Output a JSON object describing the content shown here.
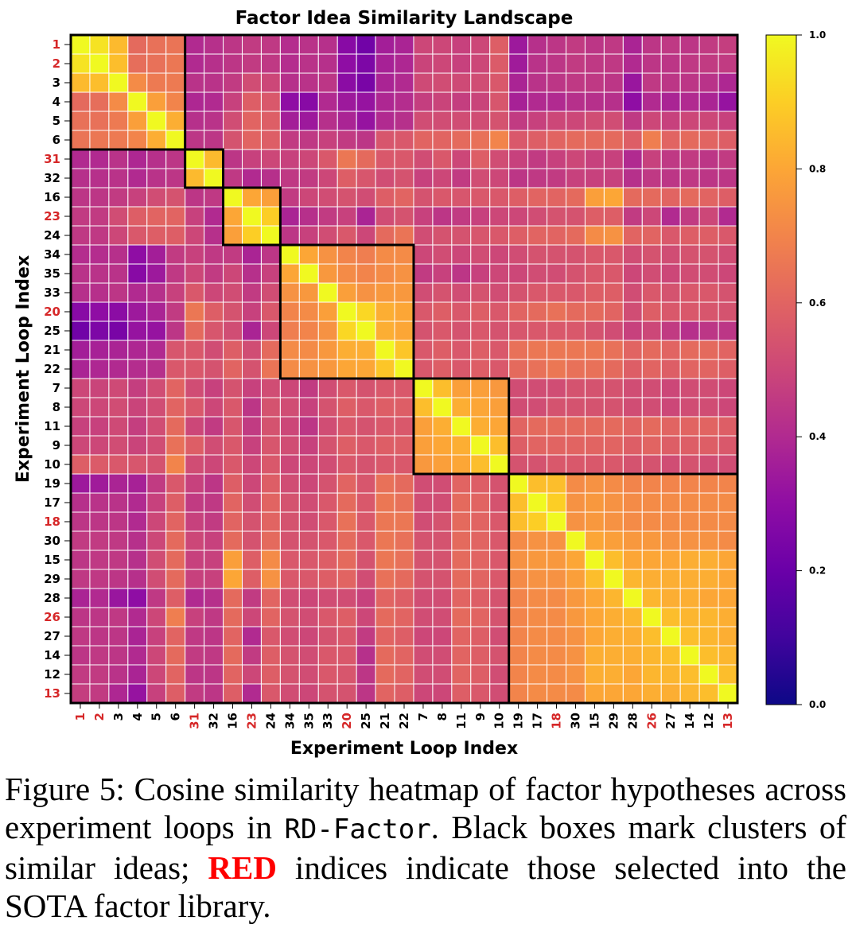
{
  "chart_data": {
    "type": "heatmap",
    "title": "Factor Idea Similarity Landscape",
    "xlabel": "Experiment Loop Index",
    "ylabel": "Experiment Loop Index",
    "labels": [
      "1",
      "2",
      "3",
      "4",
      "5",
      "6",
      "31",
      "32",
      "16",
      "23",
      "24",
      "34",
      "35",
      "33",
      "20",
      "25",
      "21",
      "22",
      "7",
      "8",
      "11",
      "9",
      "10",
      "19",
      "17",
      "18",
      "30",
      "15",
      "29",
      "28",
      "26",
      "27",
      "14",
      "12",
      "13"
    ],
    "selected_labels": [
      "1",
      "2",
      "31",
      "23",
      "20",
      "18",
      "26",
      "13"
    ],
    "selected_color": "#d62728",
    "clusters": [
      {
        "start": "1",
        "end": "6"
      },
      {
        "start": "31",
        "end": "32"
      },
      {
        "start": "16",
        "end": "24"
      },
      {
        "start": "34",
        "end": "22"
      },
      {
        "start": "7",
        "end": "10"
      },
      {
        "start": "19",
        "end": "13"
      }
    ],
    "colormap": "plasma",
    "vmin": 0.0,
    "vmax": 1.0,
    "colorbar_ticks": [
      "0.0",
      "0.2",
      "0.4",
      "0.6",
      "0.8",
      "1.0"
    ],
    "grid": true,
    "values": [
      [
        1.0,
        0.95,
        0.85,
        0.62,
        0.64,
        0.65,
        0.4,
        0.42,
        0.44,
        0.46,
        0.45,
        0.41,
        0.43,
        0.42,
        0.28,
        0.22,
        0.36,
        0.38,
        0.5,
        0.5,
        0.48,
        0.5,
        0.58,
        0.34,
        0.42,
        0.44,
        0.46,
        0.44,
        0.45,
        0.38,
        0.44,
        0.45,
        0.44,
        0.46,
        0.47
      ],
      [
        0.95,
        1.0,
        0.86,
        0.63,
        0.64,
        0.66,
        0.4,
        0.42,
        0.44,
        0.46,
        0.45,
        0.41,
        0.43,
        0.42,
        0.3,
        0.25,
        0.37,
        0.39,
        0.49,
        0.5,
        0.48,
        0.5,
        0.57,
        0.35,
        0.43,
        0.44,
        0.46,
        0.45,
        0.45,
        0.4,
        0.44,
        0.44,
        0.45,
        0.46,
        0.46
      ],
      [
        0.85,
        0.86,
        1.0,
        0.72,
        0.67,
        0.67,
        0.43,
        0.43,
        0.46,
        0.52,
        0.5,
        0.42,
        0.43,
        0.44,
        0.29,
        0.24,
        0.38,
        0.4,
        0.51,
        0.52,
        0.51,
        0.52,
        0.56,
        0.38,
        0.43,
        0.44,
        0.45,
        0.45,
        0.44,
        0.33,
        0.45,
        0.44,
        0.44,
        0.43,
        0.39
      ],
      [
        0.62,
        0.63,
        0.72,
        1.0,
        0.78,
        0.7,
        0.39,
        0.4,
        0.48,
        0.58,
        0.56,
        0.3,
        0.28,
        0.4,
        0.34,
        0.32,
        0.39,
        0.41,
        0.47,
        0.49,
        0.47,
        0.49,
        0.55,
        0.37,
        0.4,
        0.4,
        0.42,
        0.42,
        0.42,
        0.3,
        0.4,
        0.38,
        0.4,
        0.38,
        0.32
      ],
      [
        0.64,
        0.64,
        0.67,
        0.78,
        1.0,
        0.82,
        0.42,
        0.43,
        0.52,
        0.6,
        0.58,
        0.36,
        0.34,
        0.42,
        0.38,
        0.32,
        0.4,
        0.42,
        0.52,
        0.52,
        0.52,
        0.52,
        0.54,
        0.46,
        0.48,
        0.5,
        0.5,
        0.52,
        0.52,
        0.45,
        0.5,
        0.48,
        0.5,
        0.5,
        0.48
      ],
      [
        0.65,
        0.66,
        0.67,
        0.7,
        0.82,
        1.0,
        0.44,
        0.44,
        0.54,
        0.6,
        0.58,
        0.46,
        0.45,
        0.48,
        0.46,
        0.44,
        0.55,
        0.56,
        0.6,
        0.6,
        0.62,
        0.64,
        0.7,
        0.56,
        0.58,
        0.6,
        0.62,
        0.62,
        0.62,
        0.58,
        0.68,
        0.6,
        0.62,
        0.6,
        0.58
      ],
      [
        0.4,
        0.4,
        0.43,
        0.39,
        0.42,
        0.44,
        1.0,
        0.85,
        0.44,
        0.48,
        0.5,
        0.48,
        0.5,
        0.56,
        0.66,
        0.62,
        0.56,
        0.56,
        0.52,
        0.56,
        0.5,
        0.58,
        0.52,
        0.48,
        0.46,
        0.48,
        0.5,
        0.48,
        0.48,
        0.4,
        0.48,
        0.45,
        0.46,
        0.44,
        0.46
      ],
      [
        0.42,
        0.42,
        0.43,
        0.4,
        0.43,
        0.44,
        0.85,
        1.0,
        0.45,
        0.4,
        0.42,
        0.45,
        0.46,
        0.5,
        0.58,
        0.55,
        0.52,
        0.54,
        0.48,
        0.5,
        0.46,
        0.52,
        0.5,
        0.44,
        0.45,
        0.46,
        0.48,
        0.48,
        0.48,
        0.42,
        0.45,
        0.44,
        0.45,
        0.44,
        0.44
      ],
      [
        0.44,
        0.44,
        0.46,
        0.48,
        0.52,
        0.54,
        0.44,
        0.45,
        1.0,
        0.8,
        0.78,
        0.46,
        0.5,
        0.52,
        0.54,
        0.52,
        0.58,
        0.6,
        0.54,
        0.56,
        0.55,
        0.56,
        0.56,
        0.58,
        0.6,
        0.6,
        0.62,
        0.78,
        0.8,
        0.62,
        0.62,
        0.6,
        0.62,
        0.6,
        0.58
      ],
      [
        0.46,
        0.46,
        0.52,
        0.58,
        0.6,
        0.6,
        0.48,
        0.4,
        0.8,
        1.0,
        0.9,
        0.38,
        0.42,
        0.46,
        0.48,
        0.38,
        0.52,
        0.54,
        0.48,
        0.44,
        0.46,
        0.48,
        0.5,
        0.5,
        0.52,
        0.54,
        0.54,
        0.58,
        0.58,
        0.46,
        0.5,
        0.4,
        0.46,
        0.5,
        0.4
      ],
      [
        0.45,
        0.45,
        0.5,
        0.56,
        0.58,
        0.58,
        0.5,
        0.42,
        0.78,
        0.9,
        1.0,
        0.44,
        0.48,
        0.52,
        0.56,
        0.5,
        0.62,
        0.65,
        0.52,
        0.54,
        0.54,
        0.55,
        0.56,
        0.58,
        0.6,
        0.6,
        0.62,
        0.72,
        0.74,
        0.6,
        0.6,
        0.56,
        0.58,
        0.58,
        0.56
      ],
      [
        0.41,
        0.41,
        0.42,
        0.3,
        0.36,
        0.46,
        0.48,
        0.45,
        0.46,
        0.38,
        0.44,
        1.0,
        0.8,
        0.74,
        0.7,
        0.68,
        0.72,
        0.72,
        0.5,
        0.52,
        0.5,
        0.52,
        0.5,
        0.52,
        0.54,
        0.54,
        0.54,
        0.56,
        0.56,
        0.52,
        0.54,
        0.52,
        0.54,
        0.54,
        0.52
      ],
      [
        0.43,
        0.43,
        0.43,
        0.28,
        0.34,
        0.45,
        0.5,
        0.46,
        0.5,
        0.42,
        0.48,
        0.8,
        1.0,
        0.76,
        0.72,
        0.7,
        0.72,
        0.74,
        0.46,
        0.48,
        0.44,
        0.48,
        0.5,
        0.5,
        0.52,
        0.52,
        0.54,
        0.56,
        0.56,
        0.5,
        0.52,
        0.5,
        0.52,
        0.52,
        0.5
      ],
      [
        0.42,
        0.42,
        0.44,
        0.4,
        0.42,
        0.48,
        0.56,
        0.5,
        0.52,
        0.46,
        0.52,
        0.74,
        0.76,
        1.0,
        0.78,
        0.74,
        0.76,
        0.76,
        0.52,
        0.54,
        0.52,
        0.54,
        0.52,
        0.54,
        0.56,
        0.56,
        0.56,
        0.58,
        0.58,
        0.52,
        0.56,
        0.54,
        0.56,
        0.56,
        0.54
      ],
      [
        0.28,
        0.3,
        0.29,
        0.34,
        0.38,
        0.46,
        0.66,
        0.58,
        0.54,
        0.48,
        0.56,
        0.7,
        0.72,
        0.78,
        1.0,
        0.92,
        0.82,
        0.8,
        0.56,
        0.58,
        0.56,
        0.58,
        0.56,
        0.6,
        0.62,
        0.64,
        0.62,
        0.62,
        0.6,
        0.52,
        0.58,
        0.56,
        0.56,
        0.55,
        0.54
      ],
      [
        0.22,
        0.25,
        0.24,
        0.32,
        0.32,
        0.44,
        0.62,
        0.55,
        0.52,
        0.38,
        0.5,
        0.68,
        0.7,
        0.74,
        0.92,
        1.0,
        0.82,
        0.8,
        0.54,
        0.56,
        0.54,
        0.56,
        0.54,
        0.55,
        0.56,
        0.56,
        0.56,
        0.54,
        0.52,
        0.48,
        0.5,
        0.46,
        0.42,
        0.44,
        0.44
      ],
      [
        0.36,
        0.37,
        0.38,
        0.39,
        0.4,
        0.55,
        0.56,
        0.52,
        0.58,
        0.52,
        0.62,
        0.72,
        0.72,
        0.76,
        0.82,
        0.82,
        1.0,
        0.88,
        0.56,
        0.58,
        0.56,
        0.58,
        0.56,
        0.64,
        0.66,
        0.66,
        0.66,
        0.66,
        0.64,
        0.6,
        0.62,
        0.6,
        0.62,
        0.62,
        0.6
      ],
      [
        0.38,
        0.39,
        0.4,
        0.41,
        0.42,
        0.56,
        0.56,
        0.54,
        0.6,
        0.54,
        0.65,
        0.72,
        0.74,
        0.76,
        0.8,
        0.8,
        0.88,
        1.0,
        0.56,
        0.58,
        0.56,
        0.58,
        0.56,
        0.62,
        0.64,
        0.66,
        0.64,
        0.64,
        0.62,
        0.58,
        0.6,
        0.58,
        0.6,
        0.6,
        0.58
      ],
      [
        0.5,
        0.49,
        0.51,
        0.47,
        0.52,
        0.6,
        0.52,
        0.48,
        0.54,
        0.48,
        0.52,
        0.5,
        0.46,
        0.52,
        0.56,
        0.54,
        0.56,
        0.56,
        1.0,
        0.86,
        0.78,
        0.78,
        0.76,
        0.52,
        0.52,
        0.52,
        0.54,
        0.54,
        0.54,
        0.52,
        0.52,
        0.5,
        0.52,
        0.52,
        0.5
      ],
      [
        0.5,
        0.5,
        0.52,
        0.49,
        0.52,
        0.6,
        0.56,
        0.5,
        0.56,
        0.44,
        0.54,
        0.52,
        0.48,
        0.54,
        0.58,
        0.56,
        0.58,
        0.58,
        0.86,
        1.0,
        0.82,
        0.8,
        0.78,
        0.52,
        0.52,
        0.54,
        0.54,
        0.54,
        0.54,
        0.52,
        0.52,
        0.5,
        0.52,
        0.52,
        0.5
      ],
      [
        0.48,
        0.48,
        0.51,
        0.47,
        0.52,
        0.62,
        0.5,
        0.46,
        0.55,
        0.46,
        0.54,
        0.5,
        0.44,
        0.52,
        0.56,
        0.54,
        0.56,
        0.56,
        0.78,
        0.82,
        1.0,
        0.82,
        0.8,
        0.6,
        0.62,
        0.62,
        0.62,
        0.62,
        0.62,
        0.6,
        0.62,
        0.6,
        0.6,
        0.6,
        0.58
      ],
      [
        0.5,
        0.5,
        0.52,
        0.49,
        0.52,
        0.64,
        0.58,
        0.52,
        0.56,
        0.48,
        0.55,
        0.52,
        0.48,
        0.54,
        0.58,
        0.56,
        0.58,
        0.58,
        0.78,
        0.8,
        0.82,
        1.0,
        0.86,
        0.58,
        0.6,
        0.6,
        0.6,
        0.6,
        0.6,
        0.58,
        0.6,
        0.58,
        0.58,
        0.58,
        0.56
      ],
      [
        0.58,
        0.57,
        0.56,
        0.55,
        0.54,
        0.7,
        0.52,
        0.5,
        0.56,
        0.5,
        0.56,
        0.5,
        0.5,
        0.52,
        0.56,
        0.54,
        0.56,
        0.56,
        0.76,
        0.78,
        0.8,
        0.86,
        1.0,
        0.54,
        0.54,
        0.56,
        0.56,
        0.56,
        0.56,
        0.54,
        0.54,
        0.52,
        0.54,
        0.52,
        0.52
      ],
      [
        0.34,
        0.35,
        0.38,
        0.37,
        0.46,
        0.56,
        0.48,
        0.44,
        0.58,
        0.5,
        0.58,
        0.52,
        0.5,
        0.54,
        0.6,
        0.55,
        0.64,
        0.62,
        0.52,
        0.52,
        0.6,
        0.58,
        0.54,
        1.0,
        0.86,
        0.86,
        0.72,
        0.74,
        0.72,
        0.7,
        0.7,
        0.7,
        0.7,
        0.7,
        0.7
      ],
      [
        0.42,
        0.43,
        0.43,
        0.4,
        0.48,
        0.58,
        0.46,
        0.45,
        0.6,
        0.52,
        0.6,
        0.54,
        0.52,
        0.56,
        0.62,
        0.56,
        0.66,
        0.64,
        0.52,
        0.52,
        0.62,
        0.6,
        0.54,
        0.86,
        1.0,
        0.9,
        0.74,
        0.76,
        0.74,
        0.72,
        0.72,
        0.72,
        0.72,
        0.72,
        0.72
      ],
      [
        0.44,
        0.44,
        0.44,
        0.4,
        0.5,
        0.6,
        0.48,
        0.46,
        0.6,
        0.54,
        0.6,
        0.54,
        0.52,
        0.56,
        0.64,
        0.56,
        0.66,
        0.66,
        0.52,
        0.54,
        0.62,
        0.6,
        0.56,
        0.86,
        0.9,
        1.0,
        0.74,
        0.76,
        0.74,
        0.72,
        0.72,
        0.72,
        0.72,
        0.72,
        0.72
      ],
      [
        0.46,
        0.46,
        0.45,
        0.42,
        0.5,
        0.62,
        0.5,
        0.48,
        0.62,
        0.54,
        0.62,
        0.54,
        0.54,
        0.56,
        0.62,
        0.56,
        0.66,
        0.64,
        0.54,
        0.54,
        0.62,
        0.6,
        0.56,
        0.72,
        0.74,
        0.74,
        1.0,
        0.8,
        0.78,
        0.76,
        0.76,
        0.74,
        0.74,
        0.74,
        0.72
      ],
      [
        0.44,
        0.45,
        0.45,
        0.42,
        0.52,
        0.62,
        0.48,
        0.48,
        0.78,
        0.58,
        0.72,
        0.56,
        0.56,
        0.58,
        0.62,
        0.54,
        0.66,
        0.64,
        0.54,
        0.54,
        0.62,
        0.6,
        0.56,
        0.74,
        0.76,
        0.76,
        0.8,
        1.0,
        0.86,
        0.8,
        0.8,
        0.8,
        0.82,
        0.82,
        0.8
      ],
      [
        0.45,
        0.45,
        0.44,
        0.42,
        0.52,
        0.62,
        0.48,
        0.48,
        0.8,
        0.58,
        0.74,
        0.56,
        0.56,
        0.58,
        0.6,
        0.52,
        0.64,
        0.62,
        0.54,
        0.54,
        0.62,
        0.6,
        0.56,
        0.72,
        0.74,
        0.74,
        0.78,
        0.86,
        1.0,
        0.84,
        0.82,
        0.82,
        0.82,
        0.82,
        0.8
      ],
      [
        0.38,
        0.4,
        0.33,
        0.3,
        0.45,
        0.58,
        0.4,
        0.42,
        0.62,
        0.46,
        0.6,
        0.52,
        0.5,
        0.52,
        0.52,
        0.48,
        0.6,
        0.58,
        0.52,
        0.52,
        0.6,
        0.58,
        0.54,
        0.7,
        0.72,
        0.72,
        0.76,
        0.8,
        0.84,
        1.0,
        0.84,
        0.82,
        0.82,
        0.8,
        0.8
      ],
      [
        0.44,
        0.44,
        0.45,
        0.4,
        0.5,
        0.68,
        0.48,
        0.45,
        0.62,
        0.5,
        0.6,
        0.54,
        0.52,
        0.56,
        0.58,
        0.5,
        0.62,
        0.6,
        0.52,
        0.52,
        0.62,
        0.6,
        0.54,
        0.7,
        0.72,
        0.72,
        0.76,
        0.8,
        0.82,
        0.84,
        1.0,
        0.86,
        0.84,
        0.84,
        0.82
      ],
      [
        0.45,
        0.44,
        0.44,
        0.38,
        0.48,
        0.6,
        0.45,
        0.44,
        0.6,
        0.4,
        0.56,
        0.52,
        0.5,
        0.54,
        0.56,
        0.46,
        0.6,
        0.58,
        0.5,
        0.5,
        0.6,
        0.58,
        0.52,
        0.7,
        0.72,
        0.72,
        0.74,
        0.8,
        0.82,
        0.82,
        0.86,
        1.0,
        0.86,
        0.84,
        0.82
      ],
      [
        0.44,
        0.45,
        0.44,
        0.4,
        0.5,
        0.62,
        0.46,
        0.45,
        0.62,
        0.46,
        0.58,
        0.54,
        0.52,
        0.56,
        0.56,
        0.42,
        0.62,
        0.6,
        0.52,
        0.52,
        0.6,
        0.58,
        0.54,
        0.7,
        0.72,
        0.72,
        0.74,
        0.82,
        0.82,
        0.82,
        0.84,
        0.86,
        1.0,
        0.86,
        0.84
      ],
      [
        0.46,
        0.46,
        0.43,
        0.38,
        0.5,
        0.6,
        0.44,
        0.44,
        0.6,
        0.5,
        0.58,
        0.54,
        0.52,
        0.56,
        0.55,
        0.44,
        0.62,
        0.6,
        0.52,
        0.52,
        0.6,
        0.58,
        0.52,
        0.7,
        0.72,
        0.72,
        0.74,
        0.82,
        0.82,
        0.8,
        0.84,
        0.84,
        0.86,
        1.0,
        0.86
      ],
      [
        0.47,
        0.46,
        0.39,
        0.32,
        0.48,
        0.58,
        0.46,
        0.44,
        0.58,
        0.4,
        0.56,
        0.52,
        0.5,
        0.54,
        0.54,
        0.44,
        0.6,
        0.58,
        0.5,
        0.5,
        0.58,
        0.56,
        0.52,
        0.7,
        0.72,
        0.72,
        0.72,
        0.8,
        0.8,
        0.8,
        0.82,
        0.82,
        0.84,
        0.86,
        1.0
      ]
    ]
  },
  "caption": {
    "figure_label": "Figure 5:",
    "text_part1": " Cosine similarity heatmap of factor hypotheses across experiment loops in ",
    "code_name": "RD-Factor",
    "text_part2": ". Black boxes mark clusters of similar ideas; ",
    "highlight": "RED",
    "text_part3": " indices indicate those selected into the SOTA factor library."
  }
}
